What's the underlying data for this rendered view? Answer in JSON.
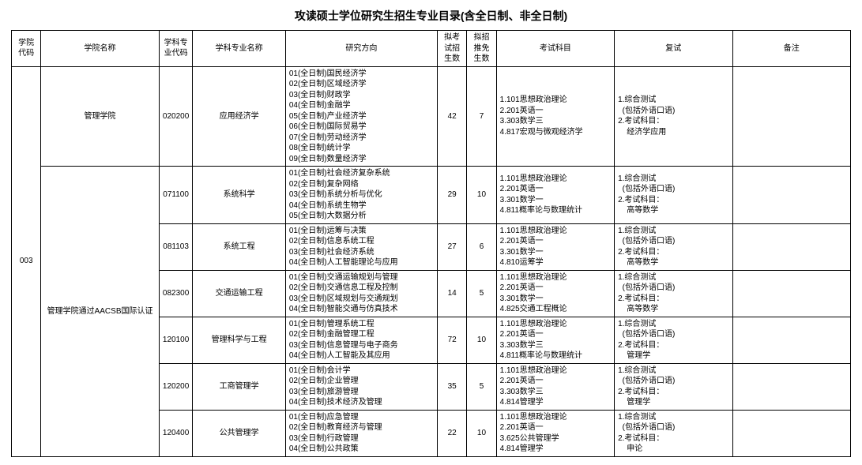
{
  "title": "攻读硕士学位研究生招生专业目录(含全日制、非全日制)",
  "columns": [
    "学院代码",
    "学院名称",
    "学科专业代码",
    "学科专业名称",
    "研究方向",
    "拟考试招生数",
    "拟招推免生数",
    "考试科目",
    "复试",
    "备注"
  ],
  "table": {
    "type": "table",
    "background_color": "#ffffff",
    "border_color": "#000000",
    "font_size_pt": 8,
    "title_fontsize_pt": 11,
    "col_widths_pct": [
      3.5,
      14,
      4,
      11,
      18,
      3.5,
      3.5,
      14,
      14,
      14
    ]
  },
  "school_code": "003",
  "school_name": "管理学院",
  "school_note": "管理学院通过AACSB国际认证",
  "rows": [
    {
      "major_code": "020200",
      "major_name": "应用经济学",
      "directions": [
        "01(全日制)国民经济学",
        "02(全日制)区域经济学",
        "03(全日制)财政学",
        "04(全日制)金融学",
        "05(全日制)产业经济学",
        "06(全日制)国际贸易学",
        "07(全日制)劳动经济学",
        "08(全日制)统计学",
        "09(全日制)数量经济学"
      ],
      "exam_count": "42",
      "rec_count": "7",
      "subjects": [
        "1.101思想政治理论",
        "2.201英语一",
        "3.303数学三",
        "4.817宏观与微观经济学"
      ],
      "retest": [
        "1.综合测试",
        "  (包括外语口语)",
        "2.考试科目：",
        "    经济学应用"
      ],
      "remark": ""
    },
    {
      "major_code": "071100",
      "major_name": "系统科学",
      "directions": [
        "01(全日制)社会经济复杂系统",
        "02(全日制)复杂网络",
        "03(全日制)系统分析与优化",
        "04(全日制)系统生物学",
        "05(全日制)大数据分析"
      ],
      "exam_count": "29",
      "rec_count": "10",
      "subjects": [
        "1.101思想政治理论",
        "2.201英语一",
        "3.301数学一",
        "4.811概率论与数理统计"
      ],
      "retest": [
        "1.综合测试",
        "  (包括外语口语)",
        "2.考试科目：",
        "    高等数学"
      ],
      "remark": ""
    },
    {
      "major_code": "081103",
      "major_name": "系统工程",
      "directions": [
        "01(全日制)运筹与决策",
        "02(全日制)信息系统工程",
        "03(全日制)社会经济系统",
        "04(全日制)人工智能理论与应用"
      ],
      "exam_count": "27",
      "rec_count": "6",
      "subjects": [
        "1.101思想政治理论",
        "2.201英语一",
        "3.301数学一",
        "4.810运筹学"
      ],
      "retest": [
        "1.综合测试",
        "  (包括外语口语)",
        "2.考试科目：",
        "    高等数学"
      ],
      "remark": ""
    },
    {
      "major_code": "082300",
      "major_name": "交通运输工程",
      "directions": [
        "01(全日制)交通运输规划与管理",
        "02(全日制)交通信息工程及控制",
        "03(全日制)区域规划与交通规划",
        "04(全日制)智能交通与仿真技术"
      ],
      "exam_count": "14",
      "rec_count": "5",
      "subjects": [
        "1.101思想政治理论",
        "2.201英语一",
        "3.301数学一",
        "4.825交通工程概论"
      ],
      "retest": [
        "1.综合测试",
        "  (包括外语口语)",
        "2.考试科目：",
        "    高等数学"
      ],
      "remark": ""
    },
    {
      "major_code": "120100",
      "major_name": "管理科学与工程",
      "directions": [
        "01(全日制)管理系统工程",
        "02(全日制)金融管理工程",
        "03(全日制)信息管理与电子商务",
        "04(全日制)人工智能及其应用"
      ],
      "exam_count": "72",
      "rec_count": "10",
      "subjects": [
        "1.101思想政治理论",
        "2.201英语一",
        "3.303数学三",
        "4.811概率论与数理统计"
      ],
      "retest": [
        "1.综合测试",
        "  (包括外语口语)",
        "2.考试科目：",
        "    管理学"
      ],
      "remark": ""
    },
    {
      "major_code": "120200",
      "major_name": "工商管理学",
      "directions": [
        "01(全日制)会计学",
        "02(全日制)企业管理",
        "03(全日制)旅游管理",
        "04(全日制)技术经济及管理"
      ],
      "exam_count": "35",
      "rec_count": "5",
      "subjects": [
        "1.101思想政治理论",
        "2.201英语一",
        "3.303数学三",
        "4.814管理学"
      ],
      "retest": [
        "1.综合测试",
        "  (包括外语口语)",
        "2.考试科目：",
        "    管理学"
      ],
      "remark": ""
    },
    {
      "major_code": "120400",
      "major_name": "公共管理学",
      "directions": [
        "01(全日制)应急管理",
        "02(全日制)教育经济与管理",
        "03(全日制)行政管理",
        "04(全日制)公共政策"
      ],
      "exam_count": "22",
      "rec_count": "10",
      "subjects": [
        "1.101思想政治理论",
        "2.201英语一",
        "3.625公共管理学",
        "4.814管理学"
      ],
      "retest": [
        "1.综合测试",
        "  (包括外语口语)",
        "2.考试科目：",
        "    申论"
      ],
      "remark": ""
    }
  ]
}
